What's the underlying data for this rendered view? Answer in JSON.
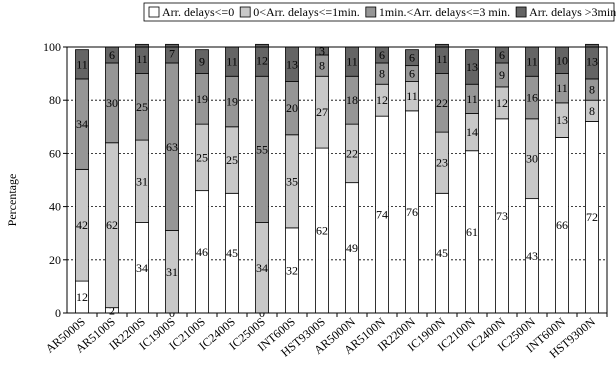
{
  "chart_data": {
    "type": "bar",
    "stacked": true,
    "title": "",
    "xlabel": "",
    "ylabel": "Percentage",
    "ylim": [
      0,
      100
    ],
    "yticks": [
      0,
      20,
      40,
      60,
      80,
      100
    ],
    "grid": "horizontal dashed",
    "legend_position": "top",
    "categories": [
      "AR5000S",
      "AR5100S",
      "IR2200S",
      "IC1900S",
      "IC2100S",
      "IC2400S",
      "IC2500S",
      "INT600S",
      "HST9300S",
      "AR5000N",
      "AR5100N",
      "IR2200N",
      "IC1900N",
      "IC2100N",
      "IC2400N",
      "IC2500N",
      "INT600N",
      "HST9300N"
    ],
    "series": [
      {
        "name": "Arr. delays<=0",
        "color": "#ffffff",
        "values": [
          12,
          2,
          34,
          0,
          46,
          45,
          0,
          32,
          62,
          49,
          74,
          76,
          45,
          61,
          73,
          43,
          66,
          72
        ]
      },
      {
        "name": "0<Arr. delays<=1min.",
        "color": "#c8c8c8",
        "values": [
          42,
          62,
          31,
          31,
          25,
          25,
          34,
          35,
          27,
          22,
          12,
          11,
          23,
          14,
          12,
          30,
          13,
          8
        ]
      },
      {
        "name": "1min.<Arr. delays<=3 min.",
        "color": "#969696",
        "values": [
          34,
          30,
          25,
          63,
          19,
          19,
          55,
          20,
          8,
          18,
          8,
          6,
          22,
          11,
          9,
          16,
          11,
          8
        ]
      },
      {
        "name": "Arr. delays >3min.",
        "color": "#646464",
        "values": [
          11,
          6,
          11,
          7,
          9,
          11,
          12,
          13,
          3,
          11,
          6,
          6,
          11,
          13,
          6,
          11,
          10,
          13
        ]
      }
    ]
  }
}
